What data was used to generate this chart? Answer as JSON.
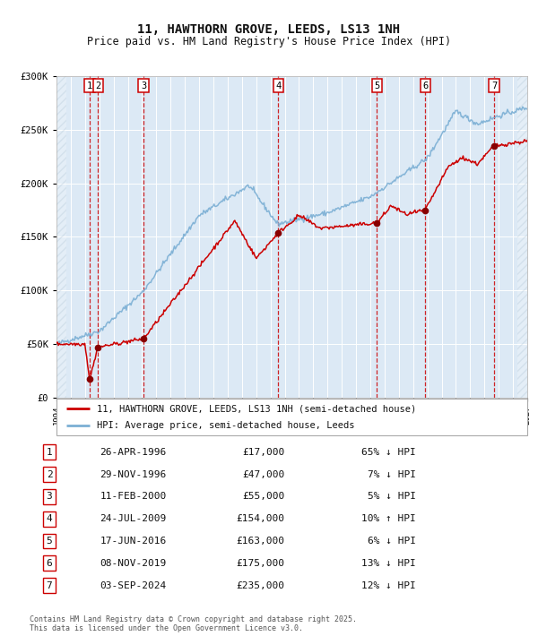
{
  "title": "11, HAWTHORN GROVE, LEEDS, LS13 1NH",
  "subtitle": "Price paid vs. HM Land Registry's House Price Index (HPI)",
  "bg_color": "#ffffff",
  "plot_bg_color": "#dce9f5",
  "grid_color": "#ffffff",
  "sale_dates_num": [
    1996.32,
    1996.91,
    2000.11,
    2009.55,
    2016.46,
    2019.85,
    2024.67
  ],
  "sale_prices": [
    17000,
    47000,
    55000,
    154000,
    163000,
    175000,
    235000
  ],
  "sale_labels": [
    "1",
    "2",
    "3",
    "4",
    "5",
    "6",
    "7"
  ],
  "sale_table": [
    {
      "num": "1",
      "date": "26-APR-1996",
      "price": "£17,000",
      "hpi": "65% ↓ HPI"
    },
    {
      "num": "2",
      "date": "29-NOV-1996",
      "price": "£47,000",
      "hpi": "7% ↓ HPI"
    },
    {
      "num": "3",
      "date": "11-FEB-2000",
      "price": "£55,000",
      "hpi": "5% ↓ HPI"
    },
    {
      "num": "4",
      "date": "24-JUL-2009",
      "price": "£154,000",
      "hpi": "10% ↑ HPI"
    },
    {
      "num": "5",
      "date": "17-JUN-2016",
      "price": "£163,000",
      "hpi": "6% ↓ HPI"
    },
    {
      "num": "6",
      "date": "08-NOV-2019",
      "price": "£175,000",
      "hpi": "13% ↓ HPI"
    },
    {
      "num": "7",
      "date": "03-SEP-2024",
      "price": "£235,000",
      "hpi": "12% ↓ HPI"
    }
  ],
  "red_line_color": "#cc0000",
  "blue_line_color": "#7bafd4",
  "dashed_line_color": "#cc0000",
  "marker_color": "#880000",
  "xmin": 1994.0,
  "xmax": 2027.0,
  "ymin": 0,
  "ymax": 300000,
  "yticks": [
    0,
    50000,
    100000,
    150000,
    200000,
    250000,
    300000
  ],
  "ytick_labels": [
    "£0",
    "£50K",
    "£100K",
    "£150K",
    "£200K",
    "£250K",
    "£300K"
  ],
  "xtick_start": 1994,
  "xtick_end": 2028,
  "footer": "Contains HM Land Registry data © Crown copyright and database right 2025.\nThis data is licensed under the Open Government Licence v3.0.",
  "legend_label_red": "11, HAWTHORN GROVE, LEEDS, LS13 1NH (semi-detached house)",
  "legend_label_blue": "HPI: Average price, semi-detached house, Leeds"
}
